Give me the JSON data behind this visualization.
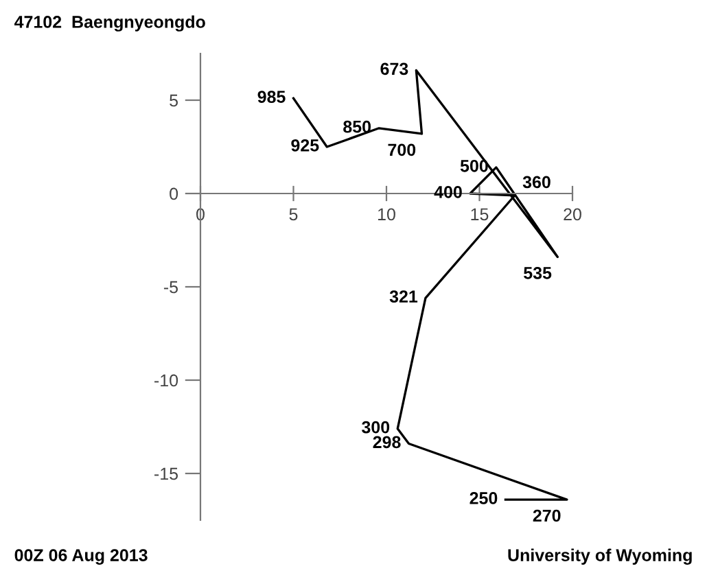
{
  "chart_data": {
    "type": "line",
    "title": "47102  Baengnyeongdo",
    "x": [
      5.0,
      6.8,
      9.6,
      11.9,
      11.6,
      19.2,
      15.9,
      14.5,
      16.9,
      12.1,
      10.6,
      11.2,
      19.7,
      16.4
    ],
    "series": [
      {
        "color": "#000000",
        "values": [
          5.1,
          2.5,
          3.5,
          3.2,
          6.6,
          -3.4,
          1.4,
          0.0,
          -0.1,
          -5.6,
          -12.6,
          -13.4,
          -16.4,
          -16.4
        ]
      }
    ],
    "xlim": [
      0,
      20
    ],
    "ylim": [
      -17.5,
      7.5
    ],
    "xticks": [
      0,
      5,
      10,
      15,
      20
    ],
    "yticks": [
      -15,
      -10,
      -5,
      0,
      5
    ],
    "grid": false,
    "legend": false,
    "marker": "none",
    "line_style": "solid",
    "annotations": [
      {
        "text": "985",
        "x": 5.0,
        "y": 5.1
      },
      {
        "text": "925",
        "x": 6.8,
        "y": 2.5
      },
      {
        "text": "850",
        "x": 9.6,
        "y": 3.5
      },
      {
        "text": "700",
        "x": 11.9,
        "y": 3.2
      },
      {
        "text": "673",
        "x": 11.6,
        "y": 6.6
      },
      {
        "text": "535",
        "x": 19.2,
        "y": -3.4
      },
      {
        "text": "500",
        "x": 15.9,
        "y": 1.4
      },
      {
        "text": "400",
        "x": 14.5,
        "y": 0.0
      },
      {
        "text": "360",
        "x": 16.9,
        "y": -0.1
      },
      {
        "text": "321",
        "x": 12.1,
        "y": -5.6
      },
      {
        "text": "300",
        "x": 10.6,
        "y": -12.6
      },
      {
        "text": "298",
        "x": 11.2,
        "y": -13.4
      },
      {
        "text": "270",
        "x": 19.7,
        "y": -16.4
      },
      {
        "text": "250",
        "x": 16.4,
        "y": -16.4
      },
      "00Z 06 Aug 2013",
      "University of Wyoming"
    ]
  }
}
